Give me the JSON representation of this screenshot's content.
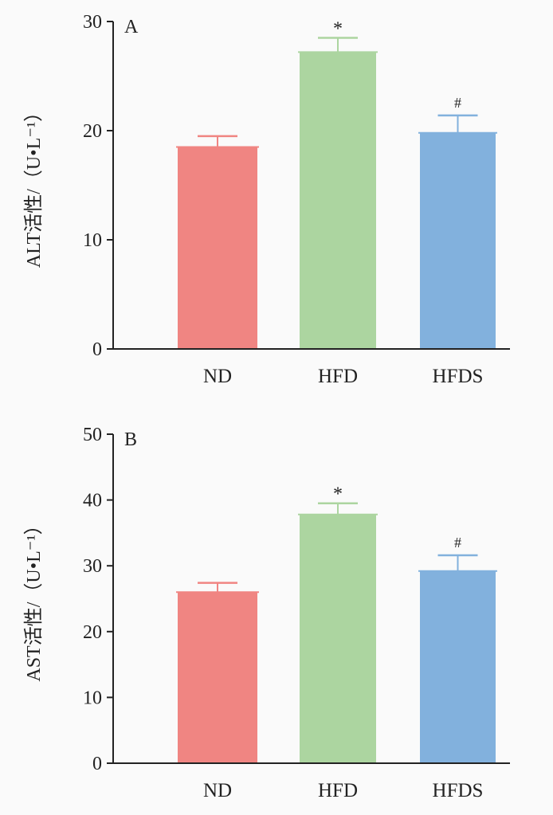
{
  "chart_data": [
    {
      "type": "bar",
      "panel_label": "A",
      "ylabel": "ALT活性/（U•L⁻¹）",
      "xlabel": "",
      "categories": [
        "ND",
        "HFD",
        "HFDS"
      ],
      "values": [
        18.5,
        27.2,
        19.8
      ],
      "error": [
        1.0,
        1.3,
        1.6
      ],
      "annotations": [
        "",
        "*",
        "#"
      ],
      "colors": [
        "#f08582",
        "#acd5a0",
        "#82b1dd"
      ],
      "ylim": [
        0,
        30
      ],
      "yticks": [
        0,
        10,
        20,
        30
      ],
      "ytick_labels": [
        "0",
        "10",
        "20",
        "30"
      ],
      "grid": false
    },
    {
      "type": "bar",
      "panel_label": "B",
      "ylabel": "AST活性/（U•L⁻¹）",
      "xlabel": "",
      "categories": [
        "ND",
        "HFD",
        "HFDS"
      ],
      "values": [
        26.0,
        37.8,
        29.2
      ],
      "error": [
        1.4,
        1.7,
        2.4
      ],
      "annotations": [
        "",
        "*",
        "#"
      ],
      "colors": [
        "#f08582",
        "#acd5a0",
        "#82b1dd"
      ],
      "ylim": [
        0,
        50
      ],
      "yticks": [
        0,
        10,
        20,
        30,
        40,
        50
      ],
      "ytick_labels": [
        "0",
        "10",
        "20",
        "30",
        "40",
        "50"
      ],
      "grid": false
    }
  ]
}
